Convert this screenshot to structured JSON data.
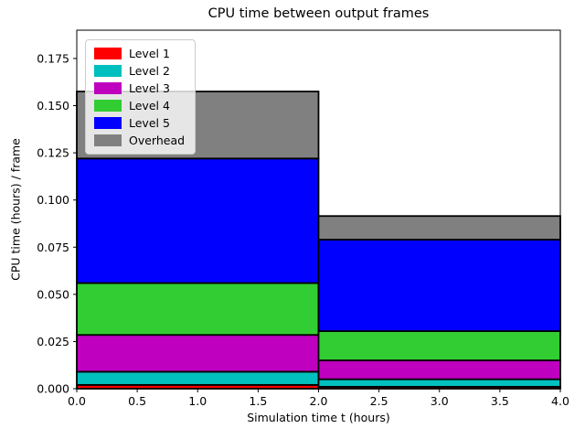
{
  "chart_data": {
    "type": "bar",
    "stacked": true,
    "title": "CPU time between output frames",
    "xlabel": "Simulation time t (hours)",
    "ylabel": "CPU time (hours) / frame",
    "xlim": [
      0,
      4
    ],
    "ylim": [
      0,
      0.19
    ],
    "grid": false,
    "bar_edges": [
      0,
      2,
      4
    ],
    "bar_edge_color": "#000000",
    "xticks": {
      "values": [
        0,
        0.5,
        1,
        1.5,
        2,
        2.5,
        3,
        3.5,
        4
      ],
      "labels": [
        "0.0",
        "0.5",
        "1.0",
        "1.5",
        "2.0",
        "2.5",
        "3.0",
        "3.5",
        "4.0"
      ]
    },
    "yticks": {
      "values": [
        0,
        0.025,
        0.05,
        0.075,
        0.1,
        0.125,
        0.15,
        0.175
      ],
      "labels": [
        "0.000",
        "0.025",
        "0.050",
        "0.075",
        "0.100",
        "0.125",
        "0.150",
        "0.175"
      ]
    },
    "series": [
      {
        "name": "Level 1",
        "color": "#ff0000",
        "values": [
          0.002,
          0.001
        ]
      },
      {
        "name": "Level 2",
        "color": "#00bfbf",
        "values": [
          0.007,
          0.004
        ]
      },
      {
        "name": "Level 3",
        "color": "#bf00bf",
        "values": [
          0.0195,
          0.01
        ]
      },
      {
        "name": "Level 4",
        "color": "#32cd32",
        "values": [
          0.0275,
          0.0155
        ]
      },
      {
        "name": "Level 5",
        "color": "#0000ff",
        "values": [
          0.066,
          0.0485
        ]
      },
      {
        "name": "Overhead",
        "color": "#808080",
        "values": [
          0.0355,
          0.0125
        ]
      }
    ],
    "bar_totals": [
      0.1575,
      0.0915
    ],
    "legend": {
      "position": "upper left"
    }
  }
}
